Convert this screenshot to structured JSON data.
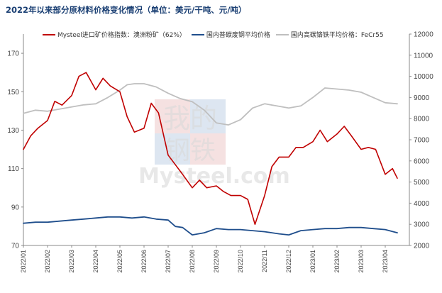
{
  "title": "2022年以来部分原材料价格变化情况（单位：美元/干吨、元/吨）",
  "watermark": {
    "line1": "我的",
    "line2": "钢铁",
    "brand": "Mysteel.com"
  },
  "chart_data": {
    "type": "line",
    "title": "2022年以来部分原材料价格变化情况（单位：美元/干吨、元/吨）",
    "legend_position": "top",
    "grid": false,
    "x_tick_labels": [
      "2022/01",
      "2022/02",
      "2022/03",
      "2022/04",
      "2022/05",
      "2022/06",
      "2022/07",
      "2022/08",
      "2022/09",
      "2022/10",
      "2022/11",
      "2022/12",
      "2023/01",
      "2023/02",
      "2023/03",
      "2023/04"
    ],
    "y_left": {
      "ticks": [
        70,
        90,
        110,
        130,
        150,
        170
      ],
      "ylim": [
        70,
        180
      ]
    },
    "y_right": {
      "ticks": [
        2000,
        3000,
        4000,
        5000,
        6000,
        7000,
        8000,
        9000,
        10000,
        11000,
        12000
      ],
      "ylim": [
        2000,
        12000
      ]
    },
    "series": [
      {
        "name": "Mysteel进口矿价格指数：澳洲粉矿（62%）",
        "axis": "left",
        "color": "#c00000",
        "x": [
          0,
          0.3,
          0.6,
          1,
          1.3,
          1.6,
          2,
          2.3,
          2.6,
          3,
          3.3,
          3.6,
          4,
          4.3,
          4.6,
          5,
          5.3,
          5.6,
          6,
          6.3,
          6.6,
          7,
          7.3,
          7.6,
          8,
          8.3,
          8.6,
          9,
          9.3,
          9.6,
          10,
          10.3,
          10.6,
          11,
          11.3,
          11.6,
          12,
          12.3,
          12.6,
          13,
          13.3,
          13.6,
          14,
          14.3,
          14.6,
          15,
          15.3,
          15.5
        ],
        "values": [
          120,
          127,
          131,
          135,
          145,
          143,
          148,
          158,
          160,
          151,
          157,
          153,
          150,
          137,
          129,
          131,
          144,
          139,
          117,
          112,
          107,
          100,
          104,
          100,
          101,
          98,
          96,
          96,
          94,
          81,
          96,
          111,
          116,
          116,
          121,
          121,
          124,
          130,
          124,
          128,
          132,
          127,
          120,
          121,
          120,
          107,
          110,
          105
        ]
      },
      {
        "name": "国内普碳废钢平均价格",
        "axis": "right",
        "color": "#1f4e8c",
        "x": [
          0,
          0.5,
          1,
          1.5,
          2,
          2.5,
          3,
          3.5,
          4,
          4.5,
          5,
          5.5,
          6,
          6.3,
          6.6,
          7,
          7.5,
          8,
          8.5,
          9,
          9.5,
          10,
          10.3,
          10.6,
          11,
          11.5,
          12,
          12.5,
          13,
          13.5,
          14,
          14.5,
          15,
          15.5
        ],
        "values": [
          3050,
          3100,
          3100,
          3150,
          3200,
          3250,
          3300,
          3350,
          3350,
          3300,
          3350,
          3250,
          3200,
          2900,
          2850,
          2500,
          2600,
          2800,
          2750,
          2750,
          2700,
          2650,
          2600,
          2550,
          2500,
          2700,
          2750,
          2800,
          2800,
          2850,
          2850,
          2800,
          2750,
          2600
        ]
      },
      {
        "name": "国内高碳铬铁平均价格：FeCr55",
        "axis": "right",
        "color": "#bfbfbf",
        "x": [
          0,
          0.5,
          1,
          1.5,
          2,
          2.5,
          3,
          3.5,
          4,
          4.3,
          4.6,
          5,
          5.5,
          6,
          6.5,
          7,
          7.5,
          8,
          8.5,
          9,
          9.5,
          10,
          10.5,
          11,
          11.5,
          12,
          12.5,
          13,
          13.5,
          14,
          14.5,
          15,
          15.5
        ],
        "values": [
          8250,
          8400,
          8350,
          8450,
          8550,
          8650,
          8700,
          9000,
          9350,
          9600,
          9650,
          9650,
          9500,
          9200,
          8950,
          8800,
          8400,
          7800,
          7700,
          7950,
          8500,
          8700,
          8600,
          8500,
          8600,
          9000,
          9450,
          9400,
          9350,
          9250,
          9000,
          8750,
          8700
        ]
      }
    ]
  }
}
